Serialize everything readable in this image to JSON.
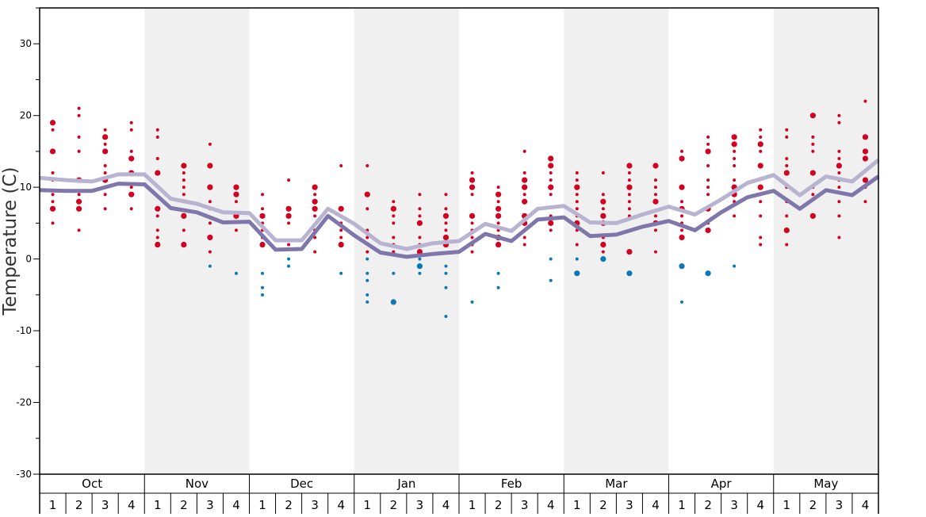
{
  "chart_data": {
    "type": "line",
    "ylabel": "Temperature (C)",
    "ylim": [
      -30,
      35
    ],
    "yticks": [
      30,
      20,
      10,
      0,
      -10,
      -20,
      -30
    ],
    "months": [
      "Oct",
      "Nov",
      "Dec",
      "Jan",
      "Feb",
      "Mar",
      "Apr",
      "May"
    ],
    "weeks": [
      "1",
      "2",
      "3",
      "4"
    ],
    "shaded_months": [
      "Nov",
      "Jan",
      "Mar",
      "May"
    ],
    "series": [
      {
        "name": "upper",
        "color": "#b7b3d1",
        "values": [
          11.3,
          11.0,
          10.8,
          11.8,
          11.8,
          8.4,
          7.7,
          6.5,
          6.4,
          2.6,
          2.6,
          7.0,
          4.9,
          2.2,
          1.4,
          2.2,
          2.5,
          4.9,
          3.9,
          7.0,
          7.4,
          5.1,
          5.0,
          6.2,
          7.3,
          6.2,
          8.3,
          10.6,
          11.7,
          8.9,
          11.5,
          10.8,
          13.8
        ]
      },
      {
        "name": "lower",
        "color": "#7f76ab",
        "values": [
          9.6,
          9.5,
          9.5,
          10.5,
          10.4,
          7.1,
          6.5,
          5.1,
          5.2,
          1.3,
          1.4,
          6.0,
          3.3,
          0.9,
          0.3,
          0.7,
          1.0,
          3.5,
          2.5,
          5.5,
          5.8,
          3.2,
          3.4,
          4.5,
          5.3,
          4.0,
          6.5,
          8.6,
          9.5,
          7.0,
          9.6,
          8.9,
          11.5
        ]
      }
    ],
    "dot_colors": {
      "warm": "#d3001f",
      "cold": "#0b78b8"
    },
    "dots": [
      {
        "t": [
          19,
          18,
          15,
          12,
          11,
          9,
          8,
          7,
          5
        ],
        "L": [
          19,
          15,
          7
        ]
      },
      {
        "t": [
          21,
          20,
          17,
          15,
          11,
          9,
          8,
          7,
          4
        ],
        "L": [
          11,
          8,
          7
        ]
      },
      {
        "t": [
          18,
          17,
          16,
          15,
          13,
          12,
          11,
          9,
          7
        ],
        "L": [
          17,
          15,
          11
        ]
      },
      {
        "t": [
          19,
          18,
          15,
          14,
          12,
          10,
          9,
          7
        ],
        "L": [
          14,
          12,
          9
        ]
      },
      {
        "t": [
          18,
          17,
          14,
          12,
          7,
          6,
          4,
          3,
          2
        ],
        "L": [
          12,
          7,
          2
        ]
      },
      {
        "t": [
          13,
          12,
          11,
          10,
          9,
          6,
          4,
          2
        ],
        "L": [
          13,
          6,
          2
        ]
      },
      {
        "t": [
          16,
          13,
          10,
          8,
          7,
          5,
          3,
          1,
          -1
        ],
        "L": [
          13,
          10,
          3
        ]
      },
      {
        "t": [
          10,
          9,
          8,
          6,
          4,
          -2
        ],
        "L": [
          10,
          9,
          6
        ]
      },
      {
        "t": [
          9,
          7,
          6,
          5,
          4,
          3,
          2,
          -2,
          -4,
          -5
        ],
        "L": [
          6,
          2
        ]
      },
      {
        "t": [
          11,
          7,
          6,
          5,
          2,
          0,
          -1
        ],
        "L": [
          7,
          6
        ]
      },
      {
        "t": [
          10,
          9,
          8,
          7,
          6,
          4,
          3,
          1
        ],
        "L": [
          10,
          8,
          7
        ]
      },
      {
        "t": [
          13,
          7,
          6,
          5,
          4,
          3,
          2,
          -2
        ],
        "L": [
          7,
          2
        ]
      },
      {
        "t": [
          13,
          9,
          7,
          4,
          3,
          1,
          0,
          -2,
          -3,
          -5,
          -6
        ],
        "L": [
          9
        ]
      },
      {
        "t": [
          8,
          7,
          6,
          5,
          3,
          2,
          1,
          -2,
          -6
        ],
        "L": [
          7,
          -6
        ]
      },
      {
        "t": [
          9,
          7,
          6,
          5,
          3,
          2,
          1,
          0,
          -1,
          -2
        ],
        "L": [
          5,
          1,
          -1
        ]
      },
      {
        "t": [
          9,
          7,
          6,
          5,
          4,
          3,
          2,
          -1,
          -2,
          -4,
          -8
        ],
        "L": [
          6,
          3,
          2
        ]
      },
      {
        "t": [
          12,
          11,
          10,
          9,
          6,
          5,
          4,
          3,
          2,
          1,
          -6
        ],
        "L": [
          11,
          10,
          6
        ]
      },
      {
        "t": [
          10,
          9,
          8,
          7,
          6,
          5,
          4,
          3,
          2,
          -2,
          -4
        ],
        "L": [
          9,
          7,
          6,
          3,
          2
        ]
      },
      {
        "t": [
          15,
          12,
          11,
          10,
          9,
          8,
          6,
          5,
          4,
          3,
          2
        ],
        "L": [
          11,
          10,
          8,
          6,
          5
        ]
      },
      {
        "t": [
          14,
          13,
          12,
          11,
          10,
          9,
          6,
          5,
          4,
          0,
          -3
        ],
        "L": [
          14,
          13,
          10,
          5
        ]
      },
      {
        "t": [
          12,
          11,
          10,
          9,
          8,
          7,
          6,
          5,
          4,
          2,
          0,
          -2
        ],
        "L": [
          10,
          5,
          -2
        ]
      },
      {
        "t": [
          12,
          9,
          8,
          7,
          6,
          5,
          3,
          2,
          1,
          0
        ],
        "L": [
          8,
          6,
          5,
          2,
          0
        ]
      },
      {
        "t": [
          13,
          12,
          11,
          10,
          9,
          8,
          7,
          6,
          1,
          -2
        ],
        "L": [
          13,
          10,
          1,
          -2
        ]
      },
      {
        "t": [
          13,
          11,
          10,
          9,
          8,
          6,
          5,
          4,
          1
        ],
        "L": [
          13,
          8,
          5
        ]
      },
      {
        "t": [
          15,
          14,
          10,
          8,
          7,
          6,
          5,
          4,
          3,
          -1,
          -6
        ],
        "L": [
          14,
          10,
          7,
          3,
          -1
        ]
      },
      {
        "t": [
          17,
          16,
          15,
          13,
          11,
          10,
          9,
          7,
          5,
          4,
          -2
        ],
        "L": [
          15,
          7,
          4,
          -2
        ]
      },
      {
        "t": [
          17,
          16,
          15,
          14,
          13,
          11,
          10,
          9,
          8,
          6,
          -1
        ],
        "L": [
          17,
          16,
          10,
          9
        ]
      },
      {
        "t": [
          18,
          17,
          16,
          15,
          13,
          10,
          9,
          8,
          6,
          3,
          2
        ],
        "L": [
          16,
          13,
          10
        ]
      },
      {
        "t": [
          18,
          17,
          14,
          13,
          12,
          10,
          8,
          6,
          4,
          2
        ],
        "L": [
          12,
          4
        ]
      },
      {
        "t": [
          20,
          17,
          16,
          15,
          12,
          10,
          9,
          6
        ],
        "L": [
          20,
          12,
          6
        ]
      },
      {
        "t": [
          20,
          19,
          15,
          14,
          13,
          12,
          11,
          10,
          8,
          6,
          3
        ],
        "L": [
          13
        ]
      },
      {
        "t": [
          22,
          17,
          15,
          14,
          11,
          10,
          8
        ],
        "L": [
          17,
          15,
          14,
          11
        ]
      }
    ]
  }
}
